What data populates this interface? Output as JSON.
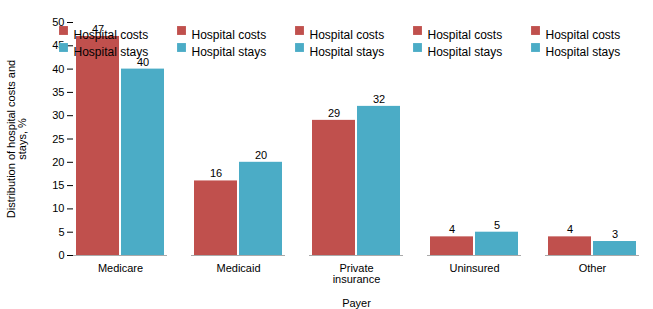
{
  "chart_data": {
    "type": "bar",
    "xlabel": "Payer",
    "ylabel": "Distribution of hospital costs and\nstays, %",
    "categories": [
      "Medicare",
      "Medicaid",
      "Private\ninsurance",
      "Uninsured",
      "Other"
    ],
    "series": [
      {
        "name": "Hospital costs",
        "color": "#c0504d",
        "values": [
          47,
          16,
          29,
          4,
          4
        ]
      },
      {
        "name": "Hospital stays",
        "color": "#4bacc6",
        "values": [
          40,
          20,
          32,
          5,
          3
        ]
      }
    ],
    "ylim": [
      0,
      50
    ],
    "yticks": [
      0,
      5,
      10,
      15,
      20,
      25,
      30,
      35,
      40,
      45,
      50
    ],
    "grid": false,
    "legend": "upper right",
    "data_labels": true
  }
}
